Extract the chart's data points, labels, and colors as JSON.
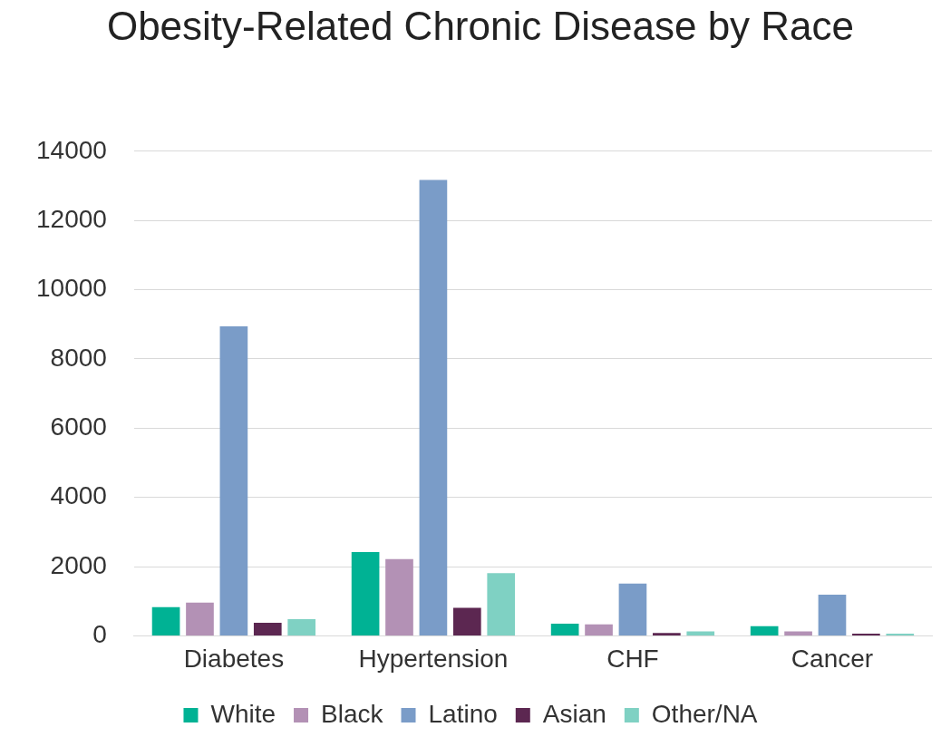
{
  "chart_data": {
    "type": "bar",
    "title": "Obesity-Related Chronic Disease by Race",
    "categories": [
      "Diabetes",
      "Hypertension",
      "CHF",
      "Cancer"
    ],
    "series": [
      {
        "name": "White",
        "color": "#00b294",
        "values": [
          830,
          2420,
          350,
          280
        ]
      },
      {
        "name": "Black",
        "color": "#b391b5",
        "values": [
          960,
          2220,
          330,
          130
        ]
      },
      {
        "name": "Latino",
        "color": "#7a9cc8",
        "values": [
          8940,
          13170,
          1510,
          1190
        ]
      },
      {
        "name": "Asian",
        "color": "#5c2751",
        "values": [
          380,
          810,
          80,
          60
        ]
      },
      {
        "name": "Other/NA",
        "color": "#7fd1c3",
        "values": [
          480,
          1810,
          130,
          60
        ]
      }
    ],
    "ylim": [
      0,
      14000
    ],
    "yticks": [
      0,
      2000,
      4000,
      6000,
      8000,
      10000,
      12000,
      14000
    ],
    "grid": "y",
    "legend": "bottom"
  }
}
